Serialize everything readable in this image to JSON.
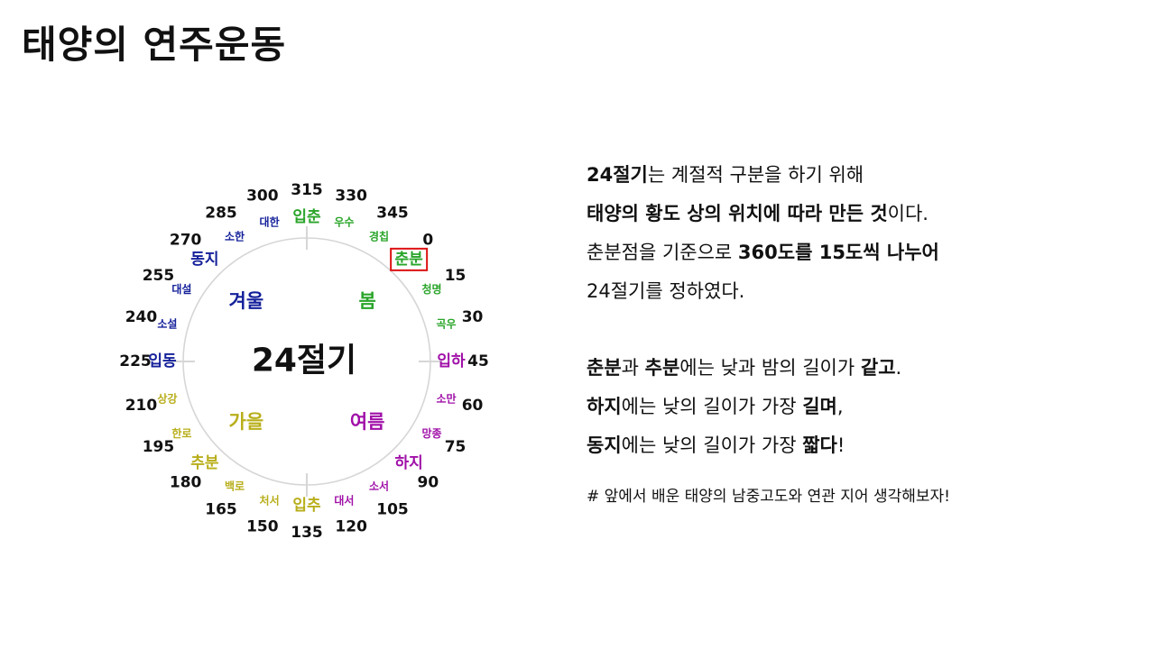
{
  "page": {
    "title": "태양의 연주운동"
  },
  "diagram": {
    "center_label": "24절기",
    "colors": {
      "spring": "#2aa52a",
      "summer": "#a010a8",
      "autumn": "#b8ae1a",
      "winter": "#14209a",
      "circle": "#d6d6d6",
      "highlight": "#dd1111"
    },
    "seasons": [
      {
        "name": "봄",
        "color": "#2aa52a"
      },
      {
        "name": "여름",
        "color": "#a010a8"
      },
      {
        "name": "가을",
        "color": "#b8ae1a"
      },
      {
        "name": "겨울",
        "color": "#14209a"
      }
    ],
    "degrees": [
      "0",
      "15",
      "30",
      "45",
      "60",
      "75",
      "90",
      "105",
      "120",
      "135",
      "150",
      "165",
      "180",
      "195",
      "210",
      "225",
      "240",
      "255",
      "270",
      "285",
      "300",
      "315",
      "330",
      "345"
    ],
    "terms": [
      {
        "name": "춘분",
        "season": "spring",
        "major": true,
        "highlighted": true
      },
      {
        "name": "청명",
        "season": "spring",
        "major": false
      },
      {
        "name": "곡우",
        "season": "spring",
        "major": false
      },
      {
        "name": "입하",
        "season": "summer",
        "major": true
      },
      {
        "name": "소만",
        "season": "summer",
        "major": false
      },
      {
        "name": "망종",
        "season": "summer",
        "major": false
      },
      {
        "name": "하지",
        "season": "summer",
        "major": true
      },
      {
        "name": "소서",
        "season": "summer",
        "major": false
      },
      {
        "name": "대서",
        "season": "summer",
        "major": false
      },
      {
        "name": "입추",
        "season": "autumn",
        "major": true
      },
      {
        "name": "처서",
        "season": "autumn",
        "major": false
      },
      {
        "name": "백로",
        "season": "autumn",
        "major": false
      },
      {
        "name": "추분",
        "season": "autumn",
        "major": true
      },
      {
        "name": "한로",
        "season": "autumn",
        "major": false
      },
      {
        "name": "상강",
        "season": "autumn",
        "major": false
      },
      {
        "name": "입동",
        "season": "winter",
        "major": true
      },
      {
        "name": "소설",
        "season": "winter",
        "major": false
      },
      {
        "name": "대설",
        "season": "winter",
        "major": false
      },
      {
        "name": "동지",
        "season": "winter",
        "major": true
      },
      {
        "name": "소한",
        "season": "winter",
        "major": false
      },
      {
        "name": "대한",
        "season": "winter",
        "major": false
      },
      {
        "name": "입춘",
        "season": "spring",
        "major": true
      },
      {
        "name": "우수",
        "season": "spring",
        "major": false
      },
      {
        "name": "경칩",
        "season": "spring",
        "major": false
      }
    ]
  },
  "explanation": {
    "l1": {
      "b1": "24절기",
      "t1": "는 계절적 구분을 하기 위해"
    },
    "l2": {
      "b1": "태양의 황도 상의 위치에 따라 만든 것",
      "t1": "이다."
    },
    "l3": {
      "t1": "춘분점을 기준으로 ",
      "b1": "360도를 15도씩 나누어"
    },
    "l4": {
      "t1": "24절기를 정하였다."
    },
    "l5": {
      "b1": "춘분",
      "t1": "과 ",
      "b2": "추분",
      "t2": "에는 낮과 밤의 길이가 ",
      "b3": "같고",
      "t3": "."
    },
    "l6": {
      "b1": "하지",
      "t1": "에는 낮의 길이가 가장 ",
      "b2": "길며",
      "t2": ","
    },
    "l7": {
      "b1": "동지",
      "t1": "에는 낮의 길이가 가장 ",
      "b2": "짧다",
      "t2": "!"
    },
    "note": "# 앞에서 배운 태양의 남중고도와 연관 지어 생각해보자!"
  }
}
